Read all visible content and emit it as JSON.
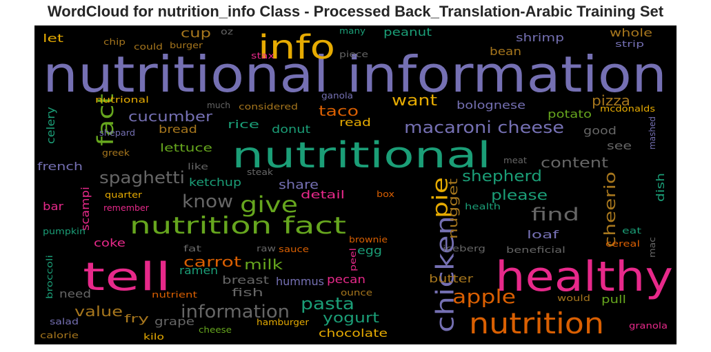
{
  "title": "WordCloud for nutrition_info Class - Processed Back_Translation-Arabic Training Set",
  "colors": {
    "purple": "#7570b3",
    "teal": "#1b9e77",
    "orange": "#d95f02",
    "pink": "#e7298a",
    "green": "#66a61e",
    "gold": "#e6ab02",
    "brown": "#a6761d",
    "gray": "#666666"
  },
  "words": [
    {
      "text": "nutritional information",
      "color": "purple"
    },
    {
      "text": "nutritional",
      "color": "teal"
    },
    {
      "text": "healthy",
      "color": "pink"
    },
    {
      "text": "tell",
      "color": "pink"
    },
    {
      "text": "info",
      "color": "gold"
    },
    {
      "text": "nutrition",
      "color": "orange"
    },
    {
      "text": "chicken",
      "color": "purple"
    },
    {
      "text": "pie",
      "color": "gold"
    },
    {
      "text": "nutrition fact",
      "color": "green"
    },
    {
      "text": "fact",
      "color": "green"
    },
    {
      "text": "give",
      "color": "green"
    },
    {
      "text": "macaroni cheese",
      "color": "purple"
    },
    {
      "text": "information",
      "color": "gray"
    },
    {
      "text": "know",
      "color": "gray"
    },
    {
      "text": "spaghetti",
      "color": "gray"
    },
    {
      "text": "apple",
      "color": "orange"
    },
    {
      "text": "pasta",
      "color": "teal"
    },
    {
      "text": "find",
      "color": "gray"
    },
    {
      "text": "shepherd",
      "color": "teal"
    },
    {
      "text": "cheerio",
      "color": "brown"
    },
    {
      "text": "nugget",
      "color": "brown"
    },
    {
      "text": "content",
      "color": "gray"
    },
    {
      "text": "cucumber",
      "color": "purple"
    },
    {
      "text": "want",
      "color": "gold"
    },
    {
      "text": "pizza",
      "color": "brown"
    },
    {
      "text": "taco",
      "color": "orange"
    },
    {
      "text": "cup",
      "color": "brown"
    },
    {
      "text": "please",
      "color": "teal"
    },
    {
      "text": "yogurt",
      "color": "teal"
    },
    {
      "text": "value",
      "color": "brown"
    },
    {
      "text": "milk",
      "color": "green"
    },
    {
      "text": "carrot",
      "color": "orange"
    },
    {
      "text": "share",
      "color": "purple"
    },
    {
      "text": "bolognese",
      "color": "purple"
    },
    {
      "text": "potato",
      "color": "green"
    },
    {
      "text": "shrimp",
      "color": "purple"
    },
    {
      "text": "whole",
      "color": "brown"
    },
    {
      "text": "bean",
      "color": "brown"
    },
    {
      "text": "peanut",
      "color": "teal"
    },
    {
      "text": "good",
      "color": "gray"
    },
    {
      "text": "see",
      "color": "gray"
    },
    {
      "text": "bread",
      "color": "brown"
    },
    {
      "text": "lettuce",
      "color": "green"
    },
    {
      "text": "rice",
      "color": "teal"
    },
    {
      "text": "donut",
      "color": "teal"
    },
    {
      "text": "read",
      "color": "gold"
    },
    {
      "text": "ketchup",
      "color": "teal"
    },
    {
      "text": "french",
      "color": "purple"
    },
    {
      "text": "bar",
      "color": "pink"
    },
    {
      "text": "scampi",
      "color": "pink"
    },
    {
      "text": "detail",
      "color": "pink"
    },
    {
      "text": "coke",
      "color": "pink"
    },
    {
      "text": "ramen",
      "color": "teal"
    },
    {
      "text": "breast",
      "color": "gray"
    },
    {
      "text": "hummus",
      "color": "purple"
    },
    {
      "text": "pecan",
      "color": "pink"
    },
    {
      "text": "egg",
      "color": "teal"
    },
    {
      "text": "loaf",
      "color": "purple"
    },
    {
      "text": "dish",
      "color": "teal"
    },
    {
      "text": "need",
      "color": "gray"
    },
    {
      "text": "fish",
      "color": "gray"
    },
    {
      "text": "fry",
      "color": "brown"
    },
    {
      "text": "grape",
      "color": "gray"
    },
    {
      "text": "chocolate",
      "color": "gold"
    },
    {
      "text": "butter",
      "color": "brown"
    },
    {
      "text": "pull",
      "color": "green"
    },
    {
      "text": "let",
      "color": "gold"
    },
    {
      "text": "celery",
      "color": "teal"
    },
    {
      "text": "chip",
      "color": "brown"
    },
    {
      "text": "could",
      "color": "brown"
    },
    {
      "text": "burger",
      "color": "brown"
    },
    {
      "text": "oz",
      "color": "gray"
    },
    {
      "text": "stax",
      "color": "pink"
    },
    {
      "text": "many",
      "color": "teal"
    },
    {
      "text": "piece",
      "color": "gray"
    },
    {
      "text": "strip",
      "color": "purple"
    },
    {
      "text": "nutrional",
      "color": "gold"
    },
    {
      "text": "much",
      "color": "gray"
    },
    {
      "text": "considered",
      "color": "brown"
    },
    {
      "text": "ganola",
      "color": "purple"
    },
    {
      "text": "mcdonalds",
      "color": "gold"
    },
    {
      "text": "shepard",
      "color": "purple"
    },
    {
      "text": "greek",
      "color": "brown"
    },
    {
      "text": "mashed",
      "color": "purple"
    },
    {
      "text": "like",
      "color": "gray"
    },
    {
      "text": "steak",
      "color": "gray"
    },
    {
      "text": "meat",
      "color": "gray"
    },
    {
      "text": "quarter",
      "color": "gold"
    },
    {
      "text": "remember",
      "color": "pink"
    },
    {
      "text": "box",
      "color": "orange"
    },
    {
      "text": "health",
      "color": "teal"
    },
    {
      "text": "pumpkin",
      "color": "teal"
    },
    {
      "text": "eat",
      "color": "teal"
    },
    {
      "text": "fat",
      "color": "gray"
    },
    {
      "text": "raw",
      "color": "gray"
    },
    {
      "text": "sauce",
      "color": "orange"
    },
    {
      "text": "brownie",
      "color": "orange"
    },
    {
      "text": "peel",
      "color": "pink"
    },
    {
      "text": "iceberg",
      "color": "gray"
    },
    {
      "text": "beneficial",
      "color": "gray"
    },
    {
      "text": "cereal",
      "color": "orange"
    },
    {
      "text": "mac",
      "color": "gray"
    },
    {
      "text": "broccoli",
      "color": "teal"
    },
    {
      "text": "nutrient",
      "color": "orange"
    },
    {
      "text": "ounce",
      "color": "brown"
    },
    {
      "text": "would",
      "color": "brown"
    },
    {
      "text": "salad",
      "color": "purple"
    },
    {
      "text": "hamburger",
      "color": "gold"
    },
    {
      "text": "granola",
      "color": "pink"
    },
    {
      "text": "calorie",
      "color": "brown"
    },
    {
      "text": "kilo",
      "color": "gold"
    },
    {
      "text": "cheese",
      "color": "green"
    }
  ]
}
